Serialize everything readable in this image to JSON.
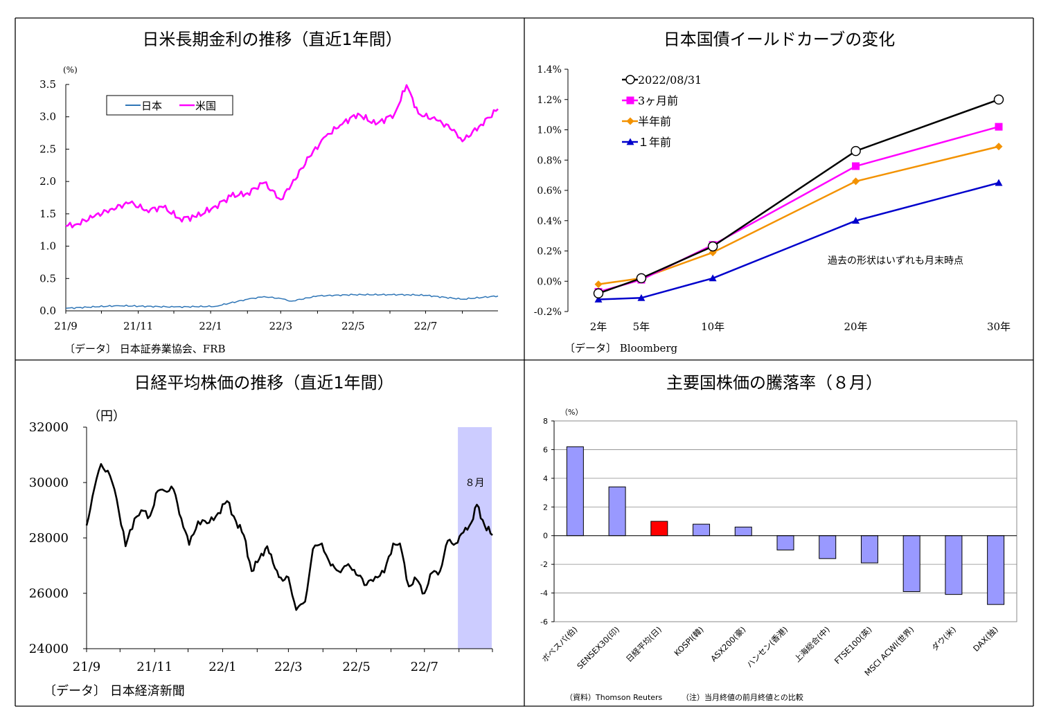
{
  "charts": {
    "rates": {
      "title": "日米長期金利の推移（直近1年間）",
      "unit": "(%)",
      "source": "〔データ〕 日本証券業協会、FRB",
      "y_ticks": [
        "0.0",
        "0.5",
        "1.0",
        "1.5",
        "2.0",
        "2.5",
        "3.0",
        "3.5"
      ],
      "x_ticks": [
        "21/9",
        "21/11",
        "22/1",
        "22/3",
        "22/5",
        "22/7"
      ]
    },
    "yield": {
      "title": "日本国債イールドカーブの変化",
      "source": "〔データ〕 Bloomberg",
      "note": "過去の形状はいずれも月末時点",
      "y_ticks": [
        "-0.2%",
        "0.0%",
        "0.2%",
        "0.4%",
        "0.6%",
        "0.8%",
        "1.0%",
        "1.2%",
        "1.4%"
      ],
      "x_ticks": [
        "2年",
        "5年",
        "10年",
        "20年",
        "30年"
      ]
    },
    "nikkei": {
      "title": "日経平均株価の推移（直近1年間）",
      "unit": "（円）",
      "source": "〔データ〕 日本経済新聞",
      "band_label": "８月",
      "y_ticks": [
        "24000",
        "26000",
        "28000",
        "30000",
        "32000"
      ],
      "x_ticks": [
        "21/9",
        "21/11",
        "22/1",
        "22/3",
        "22/5",
        "22/7"
      ]
    },
    "stocks": {
      "title": "主要国株価の騰落率（８月）",
      "unit": "（%）",
      "source": "（資料）Thomson Reuters",
      "note": "（注）当月終値の前月終値との比較",
      "y_ticks": [
        "-6",
        "-4",
        "-2",
        "0",
        "2",
        "4",
        "6",
        "8"
      ]
    }
  },
  "chart_data": [
    {
      "type": "line",
      "title": "日米長期金利の推移（直近1年間）",
      "ylabel": "(%)",
      "ylim": [
        0,
        3.5
      ],
      "x_range": [
        "2021-09-01",
        "2022-08-31"
      ],
      "legend_position": "top-left",
      "series": [
        {
          "name": "日本",
          "color": "#2E75B6",
          "x": [
            "2021-09-01",
            "2021-10-15",
            "2021-12-01",
            "2022-01-05",
            "2022-02-01",
            "2022-02-15",
            "2022-03-01",
            "2022-03-10",
            "2022-04-01",
            "2022-05-01",
            "2022-06-01",
            "2022-06-15",
            "2022-07-01",
            "2022-08-01",
            "2022-08-31"
          ],
          "values": [
            0.04,
            0.08,
            0.06,
            0.07,
            0.18,
            0.22,
            0.19,
            0.15,
            0.23,
            0.25,
            0.25,
            0.25,
            0.24,
            0.18,
            0.23
          ]
        },
        {
          "name": "米国",
          "color": "#FF00FF",
          "x": [
            "2021-09-01",
            "2021-09-10",
            "2021-09-25",
            "2021-10-10",
            "2021-10-25",
            "2021-11-08",
            "2021-11-22",
            "2021-12-06",
            "2021-12-20",
            "2022-01-05",
            "2022-01-18",
            "2022-02-01",
            "2022-02-15",
            "2022-03-01",
            "2022-03-10",
            "2022-03-25",
            "2022-04-08",
            "2022-04-20",
            "2022-05-05",
            "2022-05-20",
            "2022-06-05",
            "2022-06-15",
            "2022-06-25",
            "2022-07-10",
            "2022-07-25",
            "2022-08-01",
            "2022-08-15",
            "2022-08-31"
          ],
          "values": [
            1.31,
            1.34,
            1.46,
            1.58,
            1.67,
            1.56,
            1.6,
            1.43,
            1.45,
            1.62,
            1.77,
            1.82,
            1.98,
            1.72,
            1.95,
            2.38,
            2.7,
            2.87,
            3.05,
            2.88,
            3.05,
            3.49,
            3.05,
            2.95,
            2.8,
            2.62,
            2.85,
            3.12
          ]
        }
      ]
    },
    {
      "type": "line",
      "title": "日本国債イールドカーブの変化",
      "categories": [
        "2年",
        "5年",
        "10年",
        "20年",
        "30年"
      ],
      "x_values": [
        2,
        5,
        10,
        20,
        30
      ],
      "ylim": [
        -0.2,
        1.4
      ],
      "y_unit": "%",
      "legend_position": "top-left",
      "series": [
        {
          "name": "2022/08/31",
          "color": "#000000",
          "marker": "open-circle",
          "values": [
            -0.08,
            0.02,
            0.23,
            0.86,
            1.2
          ]
        },
        {
          "name": "3ヶ月前",
          "color": "#FF00FF",
          "marker": "square",
          "values": [
            -0.07,
            0.01,
            0.24,
            0.76,
            1.02
          ]
        },
        {
          "name": "半年前",
          "color": "#F39200",
          "marker": "diamond",
          "values": [
            -0.02,
            0.02,
            0.19,
            0.66,
            0.89
          ]
        },
        {
          "name": "１年前",
          "color": "#0000CC",
          "marker": "triangle",
          "values": [
            -0.12,
            -0.11,
            0.02,
            0.4,
            0.65
          ]
        }
      ]
    },
    {
      "type": "area",
      "title": "日経平均株価の推移（直近1年間）",
      "ylabel": "（円）",
      "ylim": [
        24000,
        32000
      ],
      "x_range": [
        "2021-09-01",
        "2022-08-31"
      ],
      "highlight": {
        "label": "８月",
        "from": "2022-08-01",
        "to": "2022-08-31",
        "color": "#CCCCFF"
      },
      "series": [
        {
          "color": "#000000",
          "x": [
            "2021-09-01",
            "2021-09-08",
            "2021-09-14",
            "2021-09-22",
            "2021-09-28",
            "2021-10-06",
            "2021-10-14",
            "2021-10-20",
            "2021-10-28",
            "2021-11-04",
            "2021-11-10",
            "2021-11-18",
            "2021-11-25",
            "2021-12-02",
            "2021-12-10",
            "2021-12-20",
            "2021-12-28",
            "2022-01-05",
            "2022-01-13",
            "2022-01-20",
            "2022-01-27",
            "2022-02-03",
            "2022-02-10",
            "2022-02-17",
            "2022-02-24",
            "2022-03-01",
            "2022-03-08",
            "2022-03-16",
            "2022-03-23",
            "2022-03-31",
            "2022-04-08",
            "2022-04-15",
            "2022-04-22",
            "2022-04-29",
            "2022-05-10",
            "2022-05-18",
            "2022-05-26",
            "2022-06-03",
            "2022-06-09",
            "2022-06-17",
            "2022-06-24",
            "2022-07-01",
            "2022-07-08",
            "2022-07-15",
            "2022-07-22",
            "2022-07-29",
            "2022-08-05",
            "2022-08-12",
            "2022-08-17",
            "2022-08-24",
            "2022-08-31"
          ],
          "values": [
            28450,
            29800,
            30670,
            30250,
            29400,
            27700,
            28700,
            29000,
            28800,
            29700,
            29700,
            29750,
            28700,
            27750,
            28600,
            28550,
            28900,
            29330,
            28600,
            28100,
            26800,
            27250,
            27700,
            26900,
            26450,
            26580,
            25400,
            25700,
            27600,
            27800,
            27000,
            26800,
            27000,
            26850,
            26300,
            26600,
            26750,
            27800,
            27800,
            26250,
            26500,
            26000,
            26750,
            26800,
            27900,
            27800,
            28200,
            28550,
            29200,
            28450,
            28100
          ]
        }
      ]
    },
    {
      "type": "bar",
      "title": "主要国株価の騰落率（８月）",
      "ylabel": "（%）",
      "ylim": [
        -6,
        8
      ],
      "categories": [
        "ボベスパ(伯)",
        "SENSEX30(印)",
        "日経平均(日)",
        "KOSPI(韓)",
        "ASX200(豪)",
        "ハンセン(香港)",
        "上海総合(中)",
        "FTSE100(英)",
        "MSCI ACWI(世界)",
        "ダウ(米)",
        "DAX(独)"
      ],
      "values": [
        6.2,
        3.4,
        1.0,
        0.8,
        0.6,
        -1.0,
        -1.6,
        -1.9,
        -3.9,
        -4.1,
        -4.8
      ],
      "colors": {
        "default": "#9999FF",
        "highlight": "#FF0000",
        "highlight_category": "日経平均(日)"
      }
    }
  ]
}
